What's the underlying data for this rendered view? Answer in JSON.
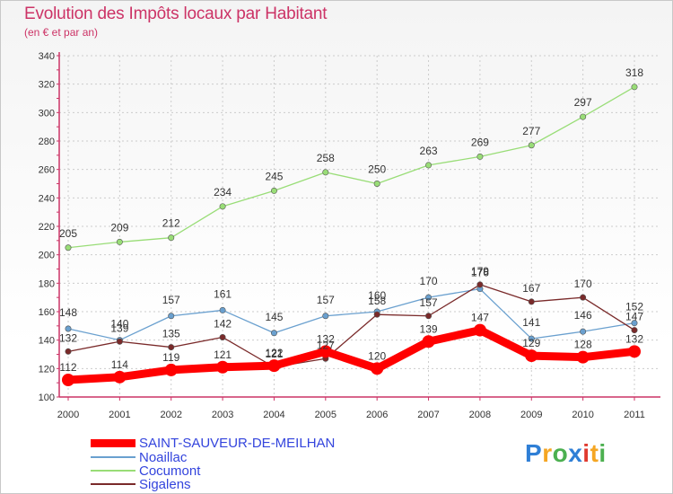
{
  "title": "Evolution des Impôts locaux par Habitant",
  "subtitle": "(en € et par an)",
  "logo": {
    "letters": [
      "P",
      "r",
      "o",
      "x",
      "i",
      "t",
      "i"
    ],
    "colors": [
      "#2f7fd6",
      "#f5a623",
      "#4cb050",
      "#2f7fd6",
      "#e03a2f",
      "#f5a623",
      "#4cb050"
    ]
  },
  "chart_data": {
    "type": "line",
    "x": [
      "2000",
      "2001",
      "2002",
      "2003",
      "2004",
      "2005",
      "2006",
      "2007",
      "2008",
      "2009",
      "2010",
      "2011"
    ],
    "ylim": [
      100,
      340
    ],
    "yticks": [
      "100",
      "120",
      "140",
      "160",
      "180",
      "200",
      "220",
      "240",
      "260",
      "280",
      "300",
      "320",
      "340"
    ],
    "grid": true,
    "legend_position": "bottom-left",
    "series": [
      {
        "name": "SAINT-SAUVEUR-DE-MEILHAN",
        "color": "#ff0000",
        "values": [
          112,
          114,
          119,
          121,
          122,
          132,
          120,
          139,
          147,
          129,
          128,
          132
        ]
      },
      {
        "name": "Noaillac",
        "color": "#6aa0cf",
        "values": [
          148,
          140,
          157,
          161,
          145,
          157,
          160,
          170,
          176,
          141,
          146,
          152
        ]
      },
      {
        "name": "Cocumont",
        "color": "#99dd77",
        "values": [
          205,
          209,
          212,
          234,
          245,
          258,
          250,
          263,
          269,
          277,
          297,
          318
        ]
      },
      {
        "name": "Sigalens",
        "color": "#7a2a2a",
        "values": [
          132,
          139,
          135,
          142,
          121,
          127,
          158,
          157,
          179,
          167,
          170,
          147
        ]
      }
    ],
    "value_labels": {
      "SAINT-SAUVEUR-DE-MEILHAN": [
        "112",
        "114",
        "119",
        "121",
        "122",
        "132",
        "120",
        "139",
        "147",
        "129",
        "128",
        "132"
      ],
      "Noaillac": [
        "148",
        "140",
        "157",
        "161",
        "145",
        "157",
        "160",
        "170",
        "176",
        "141",
        "146",
        "152"
      ],
      "Cocumont": [
        "205",
        "209",
        "212",
        "234",
        "245",
        "258",
        "250",
        "263",
        "269",
        "277",
        "297",
        "318"
      ],
      "Sigalens": [
        "132",
        "139",
        "135",
        "142",
        "121",
        "127",
        "158",
        "157",
        "179",
        "167",
        "170",
        "147"
      ]
    }
  }
}
